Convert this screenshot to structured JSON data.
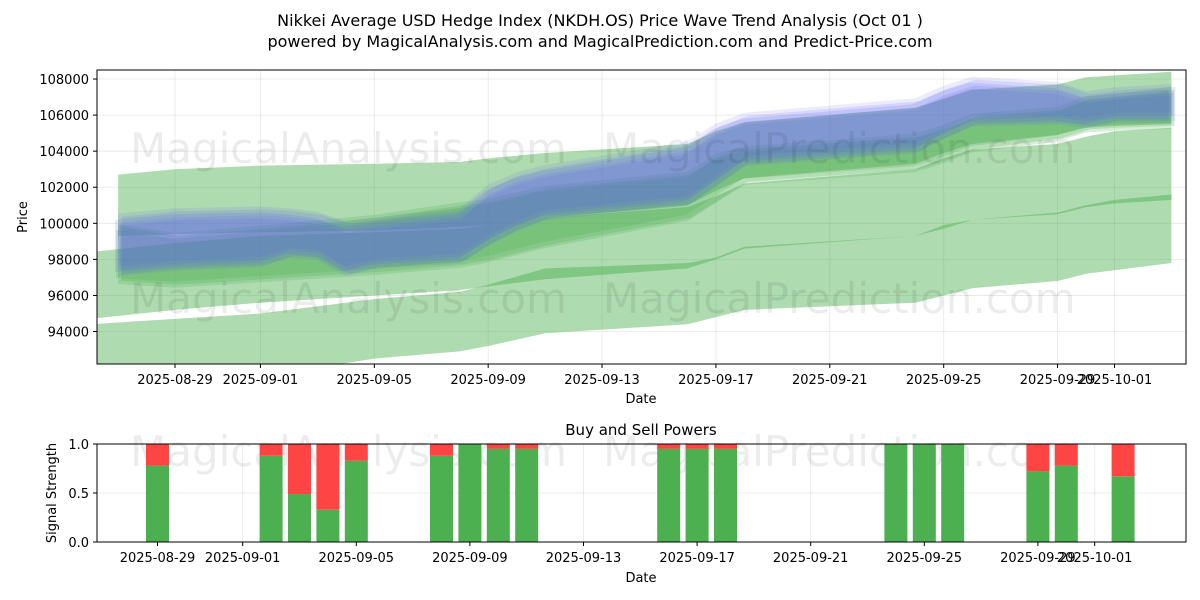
{
  "title_line1": "Nikkei Average USD Hedge Index (NKDH.OS) Price Wave Trend Analysis (Oct 01 )",
  "title_line2": "powered by MagicalAnalysis.com and MagicalPrediction.com and Predict-Price.com",
  "watermarks": [
    "MagicalAnalysis.com",
    "MagicalPrediction.com"
  ],
  "chart_data": [
    {
      "type": "area",
      "title": "",
      "xlabel": "Date",
      "ylabel": "Price",
      "x_ticks": [
        "2025-08-29",
        "2025-09-01",
        "2025-09-05",
        "2025-09-09",
        "2025-09-13",
        "2025-09-17",
        "2025-09-21",
        "2025-09-25",
        "2025-09-29",
        "2025-10-01"
      ],
      "y_ticks": [
        94000,
        96000,
        98000,
        100000,
        102000,
        104000,
        106000,
        108000
      ],
      "ylim": [
        92200,
        108500
      ],
      "grid": true,
      "colors": {
        "blue": "#5a5cf0",
        "green": "#4caf50"
      },
      "series": [
        {
          "name": "blue wave band",
          "color": "blue",
          "x": [
            "2025-08-27",
            "2025-08-29",
            "2025-09-01",
            "2025-09-02",
            "2025-09-03",
            "2025-09-04",
            "2025-09-05",
            "2025-09-08",
            "2025-09-09",
            "2025-09-10",
            "2025-09-11",
            "2025-09-16",
            "2025-09-17",
            "2025-09-18",
            "2025-09-24",
            "2025-09-25",
            "2025-09-26",
            "2025-09-29",
            "2025-09-30",
            "2025-10-01",
            "2025-10-03"
          ],
          "upper": [
            100200,
            100500,
            100600,
            100500,
            100300,
            99800,
            100000,
            100500,
            101800,
            102500,
            102900,
            104200,
            105200,
            105800,
            106600,
            107300,
            107800,
            107500,
            107000,
            107200,
            107400
          ],
          "lower": [
            97300,
            97600,
            97800,
            98300,
            98200,
            97300,
            97700,
            98000,
            99000,
            99800,
            100400,
            101200,
            102300,
            103400,
            104100,
            104900,
            105600,
            105700,
            105500,
            105800,
            105800
          ]
        },
        {
          "name": "green wave band 1",
          "color": "green",
          "x": [
            "2025-08-27",
            "2025-08-29",
            "2025-09-01",
            "2025-09-05",
            "2025-09-08",
            "2025-09-09",
            "2025-09-11",
            "2025-09-16",
            "2025-09-17",
            "2025-09-18",
            "2025-09-24",
            "2025-09-25",
            "2025-09-26",
            "2025-09-29",
            "2025-09-30",
            "2025-10-01",
            "2025-10-03"
          ],
          "upper": [
            99800,
            99300,
            99700,
            100300,
            101000,
            101200,
            101900,
            102700,
            103700,
            104100,
            104800,
            105300,
            105900,
            106300,
            106900,
            107000,
            107400
          ],
          "lower": [
            96800,
            96600,
            96900,
            97300,
            97700,
            98000,
            98800,
            100300,
            101300,
            102300,
            103000,
            103500,
            104100,
            104700,
            105200,
            105300,
            105400
          ]
        },
        {
          "name": "green wave band 2",
          "color": "green",
          "x": [
            "2025-08-27",
            "2025-08-29",
            "2025-09-01",
            "2025-09-05",
            "2025-09-08",
            "2025-09-09",
            "2025-09-11",
            "2025-09-16",
            "2025-09-17",
            "2025-09-18",
            "2025-09-24",
            "2025-09-25",
            "2025-09-26",
            "2025-09-29",
            "2025-09-30",
            "2025-10-01",
            "2025-10-03"
          ],
          "upper": [
            102700,
            103000,
            103200,
            103300,
            103400,
            103600,
            103900,
            104400,
            105100,
            105600,
            106400,
            106900,
            107400,
            107700,
            108100,
            108200,
            108400
          ],
          "lower": [
            99300,
            99400,
            99500,
            99600,
            99800,
            99900,
            100300,
            101000,
            101800,
            102500,
            103300,
            103900,
            104400,
            104900,
            105300,
            105400,
            105500
          ]
        },
        {
          "name": "green wave band 3",
          "color": "green",
          "x": [
            "2025-08-26",
            "2025-08-29",
            "2025-09-01",
            "2025-09-05",
            "2025-09-08",
            "2025-09-09",
            "2025-09-11",
            "2025-09-16",
            "2025-09-17",
            "2025-09-18",
            "2025-09-24",
            "2025-09-25",
            "2025-09-26",
            "2025-09-29",
            "2025-09-30",
            "2025-10-01",
            "2025-10-03"
          ],
          "upper": [
            98400,
            98900,
            99300,
            99500,
            99700,
            99900,
            100300,
            100900,
            101500,
            102200,
            103000,
            103600,
            104100,
            104400,
            104800,
            105100,
            105300
          ],
          "lower": [
            94700,
            95200,
            95600,
            96000,
            96300,
            96500,
            96900,
            97500,
            98000,
            98600,
            99300,
            99700,
            100200,
            100500,
            100900,
            101100,
            101300
          ]
        },
        {
          "name": "green wave band 4",
          "color": "green",
          "x": [
            "2025-08-26",
            "2025-08-29",
            "2025-09-01",
            "2025-09-05",
            "2025-09-08",
            "2025-09-09",
            "2025-09-11",
            "2025-09-16",
            "2025-09-17",
            "2025-09-18",
            "2025-09-24",
            "2025-09-25",
            "2025-09-26",
            "2025-09-29",
            "2025-09-30",
            "2025-10-01",
            "2025-10-03"
          ],
          "upper": [
            94400,
            94700,
            95000,
            95800,
            96200,
            96600,
            97500,
            97800,
            98100,
            98700,
            99300,
            99900,
            100200,
            100600,
            101000,
            101300,
            101600
          ],
          "lower": [
            90500,
            91000,
            91500,
            92500,
            92900,
            93200,
            93900,
            94400,
            94800,
            95200,
            95600,
            96000,
            96400,
            96800,
            97200,
            97400,
            97800
          ]
        }
      ]
    },
    {
      "type": "bar",
      "title": "Buy and Sell Powers",
      "xlabel": "Date",
      "ylabel": "Signal Strength",
      "x_ticks": [
        "2025-08-29",
        "2025-09-01",
        "2025-09-05",
        "2025-09-09",
        "2025-09-13",
        "2025-09-17",
        "2025-09-21",
        "2025-09-25",
        "2025-09-29",
        "2025-10-01"
      ],
      "y_ticks": [
        0.0,
        0.5,
        1.0
      ],
      "ylim": [
        0,
        1
      ],
      "colors": {
        "buy": "#4caf50",
        "sell": "#ff4444"
      },
      "categories": [
        "2025-08-29",
        "2025-09-02",
        "2025-09-03",
        "2025-09-04",
        "2025-09-05",
        "2025-09-08",
        "2025-09-09",
        "2025-09-10",
        "2025-09-11",
        "2025-09-16",
        "2025-09-17",
        "2025-09-18",
        "2025-09-24",
        "2025-09-25",
        "2025-09-26",
        "2025-09-29",
        "2025-09-30",
        "2025-10-02"
      ],
      "series": [
        {
          "name": "Buy",
          "values": [
            0.78,
            0.88,
            0.49,
            0.33,
            0.83,
            0.88,
            1.0,
            0.95,
            0.95,
            0.95,
            0.95,
            0.95,
            1.0,
            1.0,
            1.0,
            0.72,
            0.78,
            0.67
          ]
        },
        {
          "name": "Sell",
          "values": [
            0.22,
            0.12,
            0.51,
            0.67,
            0.17,
            0.12,
            0.0,
            0.05,
            0.05,
            0.05,
            0.05,
            0.05,
            0.0,
            0.0,
            0.0,
            0.28,
            0.22,
            0.33
          ]
        }
      ]
    }
  ]
}
